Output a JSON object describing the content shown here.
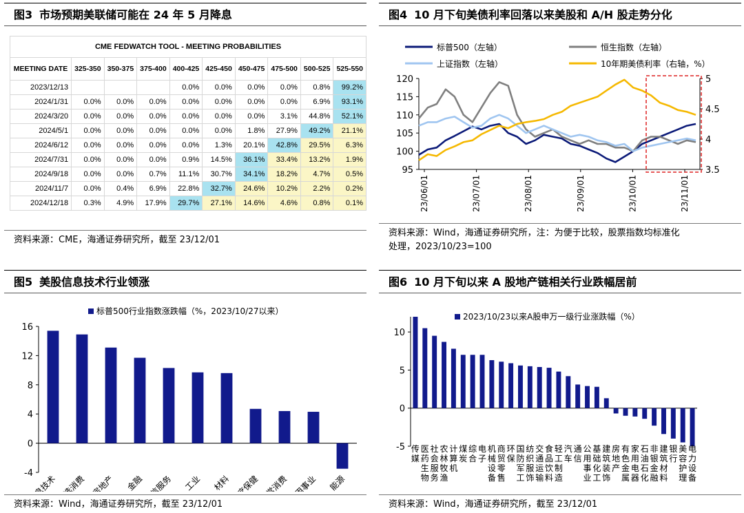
{
  "fig3": {
    "num": "图3",
    "title": "市场预期美联储可能在 24 年 5 月降息",
    "source": "资料来源：CME，海通证券研究所，截至 23/12/01",
    "table": {
      "caption": "CME FEDWATCH TOOL - MEETING PROBABILITIES",
      "header": [
        "MEETING DATE",
        "325-350",
        "350-375",
        "375-400",
        "400-425",
        "425-450",
        "450-475",
        "475-500",
        "500-525",
        "525-550"
      ],
      "rows": [
        [
          "2023/12/13",
          "",
          "",
          "",
          "0.0%",
          "0.0%",
          "0.0%",
          "0.0%",
          "0.8%",
          "99.2%"
        ],
        [
          "2024/1/31",
          "0.0%",
          "0.0%",
          "0.0%",
          "0.0%",
          "0.0%",
          "0.0%",
          "0.0%",
          "6.9%",
          "93.1%"
        ],
        [
          "2024/3/20",
          "0.0%",
          "0.0%",
          "0.0%",
          "0.0%",
          "0.0%",
          "0.0%",
          "3.1%",
          "44.8%",
          "52.1%"
        ],
        [
          "2024/5/1",
          "0.0%",
          "0.0%",
          "0.0%",
          "0.0%",
          "0.0%",
          "1.8%",
          "27.9%",
          "49.2%",
          "21.1%"
        ],
        [
          "2024/6/12",
          "0.0%",
          "0.0%",
          "0.0%",
          "0.0%",
          "1.3%",
          "20.1%",
          "42.8%",
          "29.5%",
          "6.3%"
        ],
        [
          "2024/7/31",
          "0.0%",
          "0.0%",
          "0.0%",
          "0.9%",
          "14.5%",
          "36.1%",
          "33.4%",
          "13.2%",
          "1.9%"
        ],
        [
          "2024/9/18",
          "0.0%",
          "0.0%",
          "0.7%",
          "11.1%",
          "30.7%",
          "34.1%",
          "18.2%",
          "4.7%",
          "0.5%"
        ],
        [
          "2024/11/7",
          "0.0%",
          "0.4%",
          "6.9%",
          "22.8%",
          "32.7%",
          "24.6%",
          "10.2%",
          "2.2%",
          "0.2%"
        ],
        [
          "2024/12/18",
          "0.3%",
          "4.9%",
          "17.9%",
          "29.7%",
          "27.1%",
          "14.6%",
          "4.6%",
          "0.8%",
          "0.1%"
        ]
      ],
      "highlight_col": [
        9,
        9,
        9,
        8,
        7,
        6,
        6,
        5,
        4
      ],
      "colors": {
        "highlight": "#a9e2f0",
        "shade": "#fbf6c6"
      }
    }
  },
  "fig4": {
    "num": "图4",
    "title": "10 月下旬美债利率回落以来美股和 A/H 股走势分化",
    "source_line1": "资料来源：Wind，海通证券研究所，注：为便于比较，股票指数均标准化",
    "source_line2": "处理，2023/10/23=100"
  },
  "fig5": {
    "num": "图5",
    "title": "美股信息技术行业领涨",
    "source": "资料来源：Wind，海通证券研究所，截至 23/12/01"
  },
  "fig6": {
    "num": "图6",
    "title": "10 月下旬以来 A 股地产链相关行业跌幅居前",
    "source": "资料来源：Wind，海通证券研究所，截至 23/12/01"
  },
  "chart_data": [
    {
      "id": "fig4",
      "type": "line",
      "x_ticks": [
        "23/06/01",
        "23/07/01",
        "23/08/01",
        "23/09/01",
        "23/10/01",
        "23/11/01"
      ],
      "y_left": {
        "ylim": [
          95,
          120
        ],
        "ticks": [
          95,
          100,
          105,
          110,
          115,
          120
        ]
      },
      "y_right": {
        "ylim": [
          3.5,
          5
        ],
        "ticks": [
          "3.5",
          "4",
          "4.5",
          "5"
        ]
      },
      "legend": [
        "标普500（左轴）",
        "恒生指数（左轴）",
        "上证指数（左轴）",
        "10年期美债利率（右轴，%）"
      ],
      "series": [
        {
          "name": "标普500（左轴）",
          "axis": "left",
          "color": "#0b1a78",
          "values": [
            99,
            100.5,
            101,
            103,
            104.2,
            105.5,
            106.8,
            106,
            107,
            107.5,
            105,
            104,
            102,
            103,
            104.5,
            104,
            103.5,
            102,
            101.5,
            100.5,
            99.5,
            98,
            97,
            98.5,
            100,
            102,
            103,
            104,
            105,
            106,
            107,
            107.5
          ]
        },
        {
          "name": "恒生指数（左轴）",
          "axis": "left",
          "color": "#7f7f7f",
          "values": [
            109,
            112,
            113,
            117,
            115,
            110,
            108,
            112,
            116,
            119,
            118,
            110,
            106,
            104,
            105,
            106,
            104,
            103,
            102,
            103,
            102,
            102,
            101,
            101,
            100,
            103,
            104,
            104,
            103,
            102,
            103,
            102.5
          ]
        },
        {
          "name": "上证指数（左轴）",
          "axis": "left",
          "color": "#9fc5f0",
          "values": [
            107,
            108,
            108,
            109,
            109.5,
            108,
            106.5,
            107,
            109,
            110,
            109,
            107,
            105,
            106,
            107,
            106,
            105,
            104,
            104.5,
            104,
            103,
            102.5,
            101.5,
            102,
            100,
            101,
            101.5,
            102,
            102.5,
            103,
            103.5,
            103
          ]
        },
        {
          "name": "10年期美债利率（右轴，%）",
          "axis": "right",
          "color": "#f5b800",
          "values": [
            3.65,
            3.75,
            3.72,
            3.82,
            3.88,
            3.95,
            3.98,
            4.08,
            4.15,
            4.22,
            4.18,
            4.25,
            4.28,
            4.3,
            4.33,
            4.4,
            4.45,
            4.55,
            4.6,
            4.65,
            4.7,
            4.8,
            4.9,
            4.98,
            4.85,
            4.8,
            4.72,
            4.6,
            4.55,
            4.48,
            4.45,
            4.4
          ]
        }
      ],
      "annotation": "dashed box from 2023/10/23"
    },
    {
      "id": "fig5",
      "type": "bar",
      "legend": "标普500行业指数涨跌幅（%，2023/10/27以来）",
      "categories": [
        "信息技术",
        "可选消费",
        "房地产",
        "金融",
        "电信服务",
        "工业",
        "材料",
        "医疗保健",
        "日常消费",
        "公用事业",
        "能源"
      ],
      "values": [
        15.4,
        14.9,
        13.1,
        11.7,
        10.3,
        9.7,
        9.6,
        4.7,
        4.4,
        4.3,
        -3.5
      ],
      "ylim": [
        -4,
        16
      ],
      "yticks": [
        -4,
        0,
        4,
        8,
        12,
        16
      ],
      "color": "#111a8c"
    },
    {
      "id": "fig6",
      "type": "bar",
      "legend": "2023/10/23以来A股申万一级行业涨跌幅（%）",
      "categories": [
        "传媒",
        "医药生物",
        "社会服务",
        "农林牧渔",
        "计算机",
        "煤炭",
        "综合",
        "电子",
        "机械设备",
        "商贸零售",
        "环保",
        "国防军工",
        "纺织服饰",
        "交通运输",
        "食品饮料",
        "轻工制造",
        "汽车",
        "通信",
        "公用事业",
        "基础化工",
        "建筑装饰",
        "房地产",
        "有色金属",
        "家用电器",
        "石油石化",
        "非银金融",
        "建筑材料",
        "银行",
        "美容护理",
        "电力设备"
      ],
      "values": [
        12,
        10.5,
        9.5,
        8.7,
        7.8,
        7.0,
        7.0,
        7.0,
        6.3,
        6.1,
        5.9,
        5.6,
        5.5,
        5.4,
        5.3,
        4.8,
        4.2,
        3.1,
        2.9,
        2.8,
        1.3,
        -0.7,
        -1.0,
        -1.1,
        -1.4,
        -2.3,
        -3.4,
        -4.0,
        -4.5,
        -5.0
      ],
      "ylim": [
        -5,
        12
      ],
      "yticks": [
        -5,
        0,
        5,
        10
      ],
      "color": "#111a8c"
    }
  ]
}
